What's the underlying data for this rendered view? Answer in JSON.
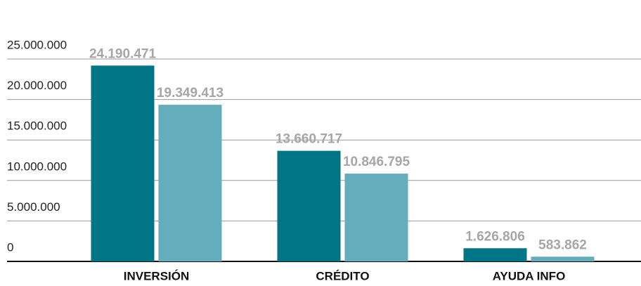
{
  "chart_data": {
    "type": "bar",
    "categories": [
      "INVERSIÓN",
      "CRÉDITO",
      "AYUDA INFO"
    ],
    "series": [
      {
        "color": "#007585",
        "values": [
          24190471,
          13660717,
          1626806
        ],
        "value_labels": [
          "24.190.471",
          "13.660.717",
          "1.626.806"
        ]
      },
      {
        "color": "#63adbd",
        "values": [
          19349413,
          10846795,
          583862
        ],
        "value_labels": [
          "19.349.413",
          "10.846.795",
          "583.862"
        ]
      }
    ],
    "ylim": [
      0,
      25000000
    ],
    "yticks": [
      {
        "value": 0,
        "label": "0"
      },
      {
        "value": 5000000,
        "label": "5.000.000"
      },
      {
        "value": 10000000,
        "label": "10.000.000"
      },
      {
        "value": 15000000,
        "label": "15.000.000"
      },
      {
        "value": 20000000,
        "label": "20.000.000"
      },
      {
        "value": 25000000,
        "label": "25.000.000"
      }
    ],
    "grid": true
  }
}
